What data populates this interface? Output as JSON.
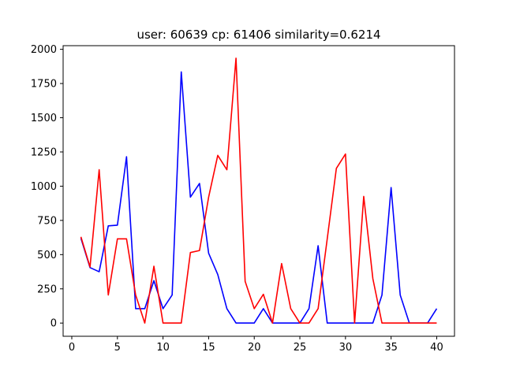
{
  "chart_data": {
    "type": "line",
    "title": "user: 60639  cp: 61406  similarity=0.6214",
    "xlabel": "",
    "ylabel": "",
    "xlim": [
      -0.95,
      41.95
    ],
    "ylim": [
      -96.5,
      2026.5
    ],
    "xticks": [
      0,
      5,
      10,
      15,
      20,
      25,
      30,
      35,
      40
    ],
    "yticks": [
      0,
      250,
      500,
      750,
      1000,
      1250,
      1500,
      1750,
      2000
    ],
    "grid": false,
    "legend": "none",
    "x": [
      1,
      2,
      3,
      4,
      5,
      6,
      7,
      8,
      9,
      10,
      11,
      12,
      13,
      14,
      15,
      16,
      17,
      18,
      19,
      20,
      21,
      22,
      23,
      24,
      25,
      26,
      27,
      28,
      29,
      30,
      31,
      32,
      33,
      34,
      35,
      36,
      37,
      38,
      39,
      40
    ],
    "series": [
      {
        "color": "#0000ff",
        "values": [
          620,
          405,
          375,
          710,
          715,
          1215,
          105,
          105,
          310,
          105,
          205,
          1835,
          920,
          1020,
          510,
          355,
          105,
          0,
          0,
          0,
          105,
          0,
          0,
          0,
          0,
          105,
          565,
          0,
          0,
          0,
          0,
          0,
          0,
          205,
          990,
          205,
          0,
          0,
          0,
          105
        ]
      },
      {
        "color": "#ff0000",
        "values": [
          630,
          410,
          1120,
          205,
          615,
          615,
          205,
          0,
          415,
          0,
          0,
          0,
          515,
          530,
          920,
          1225,
          1120,
          1935,
          305,
          105,
          210,
          0,
          435,
          105,
          0,
          0,
          105,
          615,
          1130,
          1235,
          0,
          925,
          325,
          0,
          0,
          0,
          0,
          0,
          0,
          0
        ]
      }
    ]
  }
}
